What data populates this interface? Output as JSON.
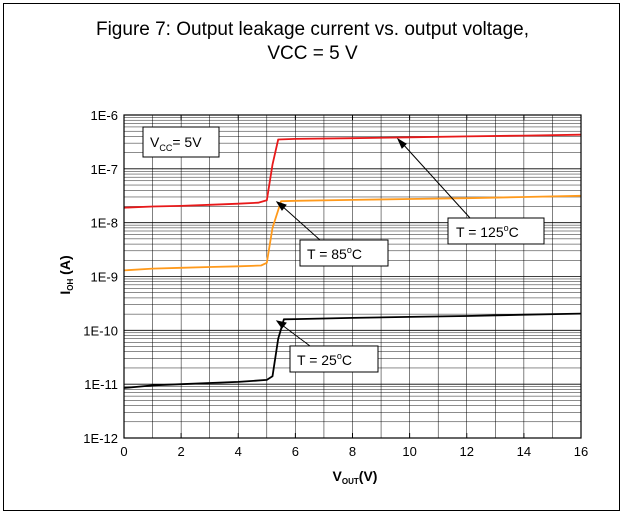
{
  "chart_data": {
    "type": "line",
    "title_line1": "Figure 7:  Output leakage current vs. output voltage,",
    "title_line2": "VCC = 5 V",
    "xlabel": {
      "main": "V",
      "sub": "OUT",
      "unit": "(V)"
    },
    "ylabel": {
      "main": "I",
      "sub": "OH",
      "unit": " (A)"
    },
    "x_scale": "linear",
    "y_scale": "log",
    "xlim": [
      0,
      16
    ],
    "ylim": [
      1e-12,
      1e-06
    ],
    "x_ticks": [
      0,
      2,
      4,
      6,
      8,
      10,
      12,
      14,
      16
    ],
    "x_tick_labels": [
      "0",
      "2",
      "4",
      "6",
      "8",
      "10",
      "12",
      "14",
      "16"
    ],
    "y_ticks": [
      1e-12,
      1e-11,
      1e-10,
      1e-09,
      1e-08,
      1e-07,
      1e-06
    ],
    "y_tick_labels": [
      "1E-12",
      "1E-11",
      "1E-10",
      "1E-9",
      "1E-8",
      "1E-7",
      "1E-6"
    ],
    "grid": true,
    "condition_label": {
      "main": "V",
      "sub": "CC",
      "rest": "= 5V"
    },
    "series": [
      {
        "label": {
          "main": "T = 125",
          "sup": "o",
          "rest": "C"
        },
        "color": "#e8191a",
        "x": [
          0,
          1,
          2,
          3,
          4,
          4.7,
          5.0,
          5.2,
          5.4,
          6,
          8,
          10,
          12,
          14,
          16
        ],
        "y": [
          1.9e-08,
          2e-08,
          2.05e-08,
          2.15e-08,
          2.25e-08,
          2.35e-08,
          2.6e-08,
          1.2e-07,
          3.5e-07,
          3.6e-07,
          3.7e-07,
          3.85e-07,
          4e-07,
          4.15e-07,
          4.3e-07
        ]
      },
      {
        "label": {
          "main": "T = 85",
          "sup": "o",
          "rest": "C"
        },
        "color": "#ff9a1c",
        "x": [
          0,
          1,
          2,
          3,
          4,
          4.8,
          5.0,
          5.2,
          5.5,
          6,
          8,
          10,
          12,
          14,
          16
        ],
        "y": [
          1.3e-09,
          1.4e-09,
          1.45e-09,
          1.5e-09,
          1.55e-09,
          1.6e-09,
          1.8e-09,
          8e-09,
          2.5e-08,
          2.55e-08,
          2.65e-08,
          2.75e-08,
          2.85e-08,
          3e-08,
          3.15e-08
        ]
      },
      {
        "label": {
          "main": "T = 25",
          "sup": "o",
          "rest": "C"
        },
        "color": "#000000",
        "x": [
          0,
          1,
          2,
          3,
          4,
          5.0,
          5.2,
          5.4,
          5.6,
          6,
          8,
          10,
          12,
          14,
          16
        ],
        "y": [
          8.5e-12,
          9.5e-12,
          1e-11,
          1.05e-11,
          1.1e-11,
          1.2e-11,
          1.4e-11,
          7e-11,
          1.6e-10,
          1.62e-10,
          1.7e-10,
          1.78e-10,
          1.85e-10,
          1.95e-10,
          2.05e-10
        ]
      }
    ]
  }
}
